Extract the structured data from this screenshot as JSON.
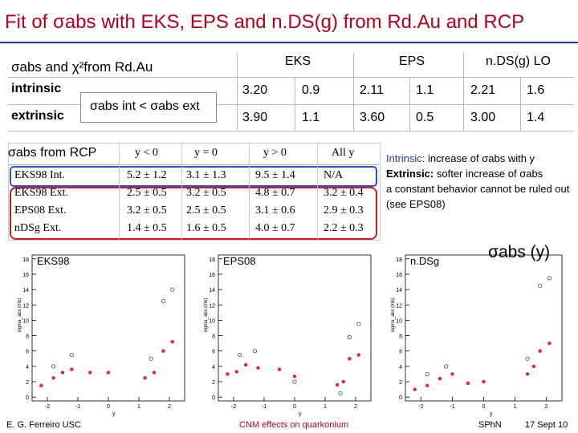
{
  "title": "Fit of σabs with EKS, EPS and n.DS(g) from Rd.Au and RCP",
  "table1": {
    "corner": "σabs and χ²from Rd.Au",
    "groups": [
      "EKS",
      "EPS",
      "n.DS(g) LO"
    ],
    "box_note": "σabs int < σabs ext",
    "rows": [
      {
        "label": "intrinsic",
        "cells": [
          "3.20",
          "0.9",
          "2.11",
          "1.1",
          "2.21",
          "1.6"
        ]
      },
      {
        "label": "extrinsic",
        "cells": [
          "3.90",
          "1.1",
          "3.60",
          "0.5",
          "3.00",
          "1.4"
        ]
      }
    ]
  },
  "table2": {
    "title": "σabs from RCP",
    "columns": [
      "y < 0",
      "y = 0",
      "y > 0",
      "All y"
    ],
    "rows": [
      {
        "label": "EKS98 Int.",
        "cells": [
          "5.2 ± 1.2",
          "3.1 ± 1.3",
          "9.5 ± 1.4",
          "N/A"
        ]
      },
      {
        "label": "EKS98 Ext.",
        "cells": [
          "2.5 ± 0.5",
          "3.2 ± 0.5",
          "4.8 ± 0.7",
          "3.2 ± 0.4"
        ]
      },
      {
        "label": "EPS08 Ext.",
        "cells": [
          "3.2 ± 0.5",
          "2.5 ± 0.5",
          "3.1 ± 0.6",
          "2.9 ± 0.3"
        ]
      },
      {
        "label": "nDSg Ext.",
        "cells": [
          "1.4 ± 0.5",
          "1.6 ± 0.5",
          "4.0 ± 0.7",
          "2.2 ± 0.3"
        ]
      }
    ]
  },
  "notes": [
    {
      "lead": "Intrinsic:",
      "text": "increase of σabs with y"
    },
    {
      "lead": "Extrinsic:",
      "text": "softer increase of σabs"
    },
    {
      "text": "a constant behavior cannot be ruled out (see EPS08)"
    }
  ],
  "sigma_label": "σabs (y)",
  "plots": [
    {
      "label": "EKS98",
      "ylabel": "sigma_abs (mb)",
      "xlabel": "y",
      "xlim": [
        -2.5,
        2.5
      ],
      "ylim": [
        -0.5,
        18.5
      ],
      "xticks": [
        -2,
        -1,
        0,
        1,
        2
      ],
      "yticks": [
        0,
        2,
        4,
        6,
        8,
        10,
        12,
        14,
        16,
        18
      ],
      "red": {
        "x": [
          -2.2,
          -1.8,
          -1.5,
          -1.2,
          -0.6,
          0,
          1.2,
          1.5,
          1.8,
          2.1
        ],
        "y": [
          1.5,
          2.5,
          3.2,
          3.6,
          3.2,
          3.2,
          2.5,
          3.2,
          6,
          7.2
        ]
      },
      "blue": {
        "x": [
          -1.8,
          -1.2,
          1.4,
          1.8,
          2.1
        ],
        "y": [
          4,
          5.5,
          5,
          12.5,
          14
        ]
      }
    },
    {
      "label": "EPS08",
      "ylabel": "sigma_abs (mb)",
      "xlabel": "y",
      "xlim": [
        -2.5,
        2.5
      ],
      "ylim": [
        -0.5,
        18.5
      ],
      "xticks": [
        -2,
        -1,
        0,
        1,
        2
      ],
      "yticks": [
        0,
        2,
        4,
        6,
        8,
        10,
        12,
        14,
        16,
        18
      ],
      "red": {
        "x": [
          -2.2,
          -1.9,
          -1.6,
          -1.2,
          -0.5,
          0,
          1.4,
          1.6,
          1.8,
          2.1
        ],
        "y": [
          3,
          3.3,
          4.2,
          3.8,
          3.6,
          2.7,
          1.6,
          2,
          5,
          5.5
        ]
      },
      "blue": {
        "x": [
          -1.8,
          -1.3,
          0,
          1.5,
          1.8,
          2.1
        ],
        "y": [
          5.5,
          6,
          2,
          0.5,
          7.8,
          9.5
        ]
      }
    },
    {
      "label": "n.DSg",
      "ylabel": "sigma_abs (mb)",
      "xlabel": "y",
      "xlim": [
        -2.5,
        2.5
      ],
      "ylim": [
        -0.5,
        18.5
      ],
      "xticks": [
        -2,
        -1,
        0,
        1,
        2
      ],
      "yticks": [
        0,
        2,
        4,
        6,
        8,
        10,
        12,
        14,
        16,
        18
      ],
      "red": {
        "x": [
          -2.2,
          -1.8,
          -1.4,
          -1,
          -0.5,
          0,
          1.4,
          1.6,
          1.8,
          2.1
        ],
        "y": [
          1,
          1.5,
          2.4,
          3,
          1.8,
          2,
          3,
          4,
          6,
          7
        ]
      },
      "blue": {
        "x": [
          -1.8,
          -1.2,
          1.4,
          1.8,
          2.1
        ],
        "y": [
          3,
          4,
          5,
          14.5,
          15.5
        ]
      }
    }
  ],
  "footer": {
    "left": "E. G. Ferreiro USC",
    "center": "CNM effects on quarkonium",
    "right1": "SPhN",
    "right2": "17 Sept 10"
  }
}
